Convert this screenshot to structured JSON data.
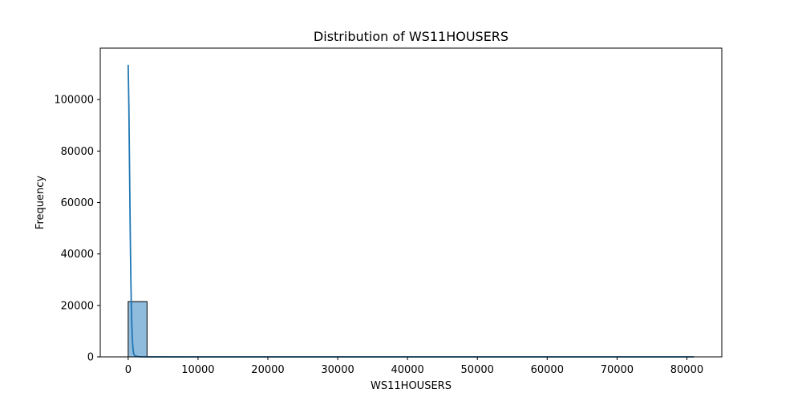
{
  "chart_data": {
    "type": "bar",
    "title": "Distribution of WS11HOUSERS",
    "xlabel": "WS11HOUSERS",
    "ylabel": "Frequency",
    "xlim": [
      -4000,
      85000
    ],
    "ylim": [
      0,
      120000
    ],
    "xticks": [
      0,
      10000,
      20000,
      30000,
      40000,
      50000,
      60000,
      70000,
      80000
    ],
    "yticks": [
      0,
      20000,
      40000,
      60000,
      80000,
      100000
    ],
    "grid": false,
    "histogram": {
      "bin_width": 2700,
      "bins": [
        {
          "x0": 0,
          "x1": 2700,
          "count": 21500
        },
        {
          "x0": 2700,
          "x1": 5400,
          "count": 30
        },
        {
          "x0": 5400,
          "x1": 8100,
          "count": 10
        },
        {
          "x0": 8100,
          "x1": 10800,
          "count": 5
        },
        {
          "x0": 10800,
          "x1": 13500,
          "count": 3
        },
        {
          "x0": 13500,
          "x1": 16200,
          "count": 2
        },
        {
          "x0": 16200,
          "x1": 18900,
          "count": 2
        },
        {
          "x0": 18900,
          "x1": 21600,
          "count": 1
        },
        {
          "x0": 21600,
          "x1": 24300,
          "count": 1
        },
        {
          "x0": 24300,
          "x1": 27000,
          "count": 1
        },
        {
          "x0": 27000,
          "x1": 29700,
          "count": 1
        },
        {
          "x0": 29700,
          "x1": 32400,
          "count": 1
        },
        {
          "x0": 32400,
          "x1": 35100,
          "count": 0
        },
        {
          "x0": 35100,
          "x1": 37800,
          "count": 0
        },
        {
          "x0": 37800,
          "x1": 40500,
          "count": 1
        },
        {
          "x0": 40500,
          "x1": 43200,
          "count": 0
        },
        {
          "x0": 43200,
          "x1": 45900,
          "count": 0
        },
        {
          "x0": 45900,
          "x1": 48600,
          "count": 0
        },
        {
          "x0": 48600,
          "x1": 51300,
          "count": 0
        },
        {
          "x0": 51300,
          "x1": 54000,
          "count": 0
        },
        {
          "x0": 54000,
          "x1": 56700,
          "count": 0
        },
        {
          "x0": 56700,
          "x1": 59400,
          "count": 0
        },
        {
          "x0": 59400,
          "x1": 62100,
          "count": 0
        },
        {
          "x0": 62100,
          "x1": 64800,
          "count": 0
        },
        {
          "x0": 64800,
          "x1": 67500,
          "count": 0
        },
        {
          "x0": 67500,
          "x1": 70200,
          "count": 0
        },
        {
          "x0": 70200,
          "x1": 72900,
          "count": 0
        },
        {
          "x0": 72900,
          "x1": 75600,
          "count": 0
        },
        {
          "x0": 75600,
          "x1": 78300,
          "count": 0
        },
        {
          "x0": 78300,
          "x1": 81000,
          "count": 1
        }
      ]
    },
    "kde": {
      "x": [
        0,
        100,
        200,
        300,
        400,
        500,
        600,
        700,
        800,
        1000,
        1500,
        2000,
        3000,
        5000,
        10000,
        20000,
        30000,
        40000,
        50000,
        60000,
        70000,
        80000,
        81000
      ],
      "y": [
        113500,
        97000,
        72000,
        47000,
        27000,
        14000,
        6500,
        2800,
        1100,
        350,
        80,
        30,
        10,
        3,
        1,
        0,
        0,
        0,
        0,
        0,
        0,
        0,
        0
      ]
    },
    "colors": {
      "bar_fill": "#8fbbdd",
      "bar_edge": "#000000",
      "kde_line": "#1f77b4",
      "axes": "#000000"
    }
  }
}
